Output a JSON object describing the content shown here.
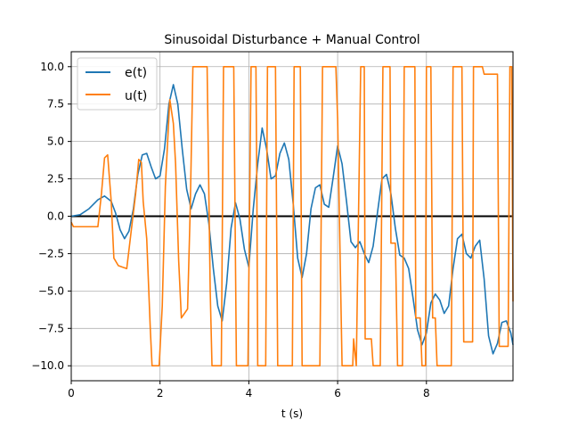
{
  "chart_data": {
    "type": "line",
    "title": "Sinusoidal Disturbance + Manual Control",
    "xlabel": "t (s)",
    "ylabel": "",
    "xlim": [
      0,
      9.95
    ],
    "ylim": [
      -11,
      11
    ],
    "xticks": [
      0,
      2,
      4,
      6,
      8
    ],
    "xtick_labels": [
      "0",
      "2",
      "4",
      "6",
      "8"
    ],
    "yticks": [
      -10,
      -7.5,
      -5,
      -2.5,
      0,
      2.5,
      5,
      7.5,
      10
    ],
    "ytick_labels": [
      "−10.0",
      "−7.5",
      "−5.0",
      "−2.5",
      "0.0",
      "2.5",
      "5.0",
      "7.5",
      "10.0"
    ],
    "grid": true,
    "legend_position": "top-left",
    "reference_line": {
      "y": 0,
      "color": "#000000"
    },
    "series": [
      {
        "name": "e(t)",
        "color": "#1f77b4",
        "points": [
          [
            0,
            0
          ],
          [
            0.2,
            0.1
          ],
          [
            0.4,
            0.5
          ],
          [
            0.6,
            1.1
          ],
          [
            0.75,
            1.35
          ],
          [
            0.9,
            1.0
          ],
          [
            1.0,
            0.2
          ],
          [
            1.1,
            -0.9
          ],
          [
            1.2,
            -1.5
          ],
          [
            1.3,
            -1.0
          ],
          [
            1.4,
            0.5
          ],
          [
            1.5,
            2.8
          ],
          [
            1.6,
            4.1
          ],
          [
            1.7,
            4.2
          ],
          [
            1.8,
            3.3
          ],
          [
            1.9,
            2.5
          ],
          [
            2.0,
            2.7
          ],
          [
            2.1,
            4.5
          ],
          [
            2.2,
            7.5
          ],
          [
            2.3,
            8.8
          ],
          [
            2.4,
            7.5
          ],
          [
            2.5,
            4.5
          ],
          [
            2.6,
            1.8
          ],
          [
            2.7,
            0.5
          ],
          [
            2.8,
            1.5
          ],
          [
            2.9,
            2.1
          ],
          [
            3.0,
            1.5
          ],
          [
            3.1,
            -0.5
          ],
          [
            3.2,
            -3.5
          ],
          [
            3.3,
            -6.0
          ],
          [
            3.4,
            -7.0
          ],
          [
            3.5,
            -4.5
          ],
          [
            3.6,
            -0.8
          ],
          [
            3.7,
            0.9
          ],
          [
            3.8,
            -0.2
          ],
          [
            3.9,
            -2.2
          ],
          [
            4.0,
            -3.4
          ],
          [
            4.1,
            0.5
          ],
          [
            4.2,
            3.5
          ],
          [
            4.3,
            5.9
          ],
          [
            4.4,
            4.5
          ],
          [
            4.5,
            2.5
          ],
          [
            4.6,
            2.7
          ],
          [
            4.7,
            4.2
          ],
          [
            4.8,
            4.9
          ],
          [
            4.9,
            3.8
          ],
          [
            5.0,
            0.8
          ],
          [
            5.1,
            -2.8
          ],
          [
            5.2,
            -4.1
          ],
          [
            5.3,
            -2.5
          ],
          [
            5.4,
            0.5
          ],
          [
            5.5,
            1.9
          ],
          [
            5.6,
            2.1
          ],
          [
            5.7,
            0.8
          ],
          [
            5.8,
            0.6
          ],
          [
            5.9,
            2.6
          ],
          [
            6.0,
            4.7
          ],
          [
            6.1,
            3.5
          ],
          [
            6.2,
            1.0
          ],
          [
            6.3,
            -1.7
          ],
          [
            6.4,
            -2.1
          ],
          [
            6.5,
            -1.7
          ],
          [
            6.6,
            -2.5
          ],
          [
            6.7,
            -3.1
          ],
          [
            6.8,
            -2.0
          ],
          [
            6.9,
            0.3
          ],
          [
            7.0,
            2.5
          ],
          [
            7.1,
            2.8
          ],
          [
            7.2,
            1.5
          ],
          [
            7.3,
            -0.8
          ],
          [
            7.4,
            -2.6
          ],
          [
            7.5,
            -2.8
          ],
          [
            7.6,
            -3.5
          ],
          [
            7.7,
            -5.5
          ],
          [
            7.8,
            -7.6
          ],
          [
            7.9,
            -8.6
          ],
          [
            8.0,
            -7.8
          ],
          [
            8.1,
            -5.8
          ],
          [
            8.2,
            -5.2
          ],
          [
            8.3,
            -5.6
          ],
          [
            8.4,
            -6.5
          ],
          [
            8.5,
            -6.0
          ],
          [
            8.6,
            -3.5
          ],
          [
            8.7,
            -1.5
          ],
          [
            8.8,
            -1.2
          ],
          [
            8.9,
            -2.5
          ],
          [
            9.0,
            -2.8
          ],
          [
            9.1,
            -2.0
          ],
          [
            9.2,
            -1.6
          ],
          [
            9.3,
            -4.2
          ],
          [
            9.4,
            -8.0
          ],
          [
            9.5,
            -9.2
          ],
          [
            9.6,
            -8.5
          ],
          [
            9.7,
            -7.1
          ],
          [
            9.8,
            -7.0
          ],
          [
            9.9,
            -7.8
          ],
          [
            9.95,
            -8.6
          ]
        ]
      },
      {
        "name": "u(t)",
        "color": "#ff7f0e",
        "points": [
          [
            0,
            -0.4
          ],
          [
            0.05,
            -0.7
          ],
          [
            0.6,
            -0.7
          ],
          [
            0.68,
            1.5
          ],
          [
            0.75,
            3.9
          ],
          [
            0.82,
            4.1
          ],
          [
            0.9,
            1.0
          ],
          [
            0.96,
            -2.8
          ],
          [
            1.06,
            -3.3
          ],
          [
            1.15,
            -3.4
          ],
          [
            1.25,
            -3.5
          ],
          [
            1.33,
            -1.5
          ],
          [
            1.45,
            1.5
          ],
          [
            1.52,
            3.8
          ],
          [
            1.58,
            3.6
          ],
          [
            1.62,
            1.0
          ],
          [
            1.7,
            -1.5
          ],
          [
            1.78,
            -7.5
          ],
          [
            1.82,
            -10.0
          ],
          [
            1.98,
            -10.0
          ],
          [
            2.05,
            -6.0
          ],
          [
            2.12,
            2.0
          ],
          [
            2.18,
            5.5
          ],
          [
            2.22,
            7.8
          ],
          [
            2.3,
            6.2
          ],
          [
            2.35,
            3.5
          ],
          [
            2.42,
            -3.0
          ],
          [
            2.48,
            -6.8
          ],
          [
            2.62,
            -6.2
          ],
          [
            2.68,
            0.5
          ],
          [
            2.74,
            10.0
          ],
          [
            3.06,
            10.0
          ],
          [
            3.13,
            -5.0
          ],
          [
            3.17,
            -10.0
          ],
          [
            3.38,
            -10.0
          ],
          [
            3.43,
            10.0
          ],
          [
            3.66,
            10.0
          ],
          [
            3.72,
            -10.0
          ],
          [
            3.98,
            -10.0
          ],
          [
            4.05,
            10.0
          ],
          [
            4.16,
            10.0
          ],
          [
            4.18,
            2.0
          ],
          [
            4.2,
            -10.0
          ],
          [
            4.38,
            -10.0
          ],
          [
            4.42,
            10.0
          ],
          [
            4.6,
            10.0
          ],
          [
            4.65,
            -10.0
          ],
          [
            4.98,
            -10.0
          ],
          [
            5.02,
            10.0
          ],
          [
            5.16,
            10.0
          ],
          [
            5.2,
            -10.0
          ],
          [
            5.6,
            -10.0
          ],
          [
            5.66,
            10.0
          ],
          [
            5.96,
            10.0
          ],
          [
            6.0,
            6.5
          ],
          [
            6.1,
            -10.0
          ],
          [
            6.34,
            -10.0
          ],
          [
            6.36,
            -8.2
          ],
          [
            6.42,
            -10.0
          ],
          [
            6.52,
            10.0
          ],
          [
            6.6,
            10.0
          ],
          [
            6.62,
            -8.2
          ],
          [
            6.76,
            -8.2
          ],
          [
            6.8,
            -10.0
          ],
          [
            6.96,
            -10.0
          ],
          [
            7.02,
            10.0
          ],
          [
            7.18,
            10.0
          ],
          [
            7.2,
            -1.8
          ],
          [
            7.3,
            -1.8
          ],
          [
            7.35,
            -10.0
          ],
          [
            7.46,
            -10.0
          ],
          [
            7.5,
            10.0
          ],
          [
            7.74,
            10.0
          ],
          [
            7.76,
            -6.8
          ],
          [
            7.86,
            -6.8
          ],
          [
            7.9,
            -10.0
          ],
          [
            7.98,
            -10.0
          ],
          [
            8.0,
            10.0
          ],
          [
            8.1,
            10.0
          ],
          [
            8.14,
            -6.8
          ],
          [
            8.2,
            -6.8
          ],
          [
            8.24,
            -10.0
          ],
          [
            8.56,
            -10.0
          ],
          [
            8.6,
            10.0
          ],
          [
            8.8,
            10.0
          ],
          [
            8.84,
            -8.4
          ],
          [
            9.04,
            -8.4
          ],
          [
            9.06,
            10.0
          ],
          [
            9.26,
            10.0
          ],
          [
            9.3,
            9.5
          ],
          [
            9.6,
            9.5
          ],
          [
            9.64,
            -8.7
          ],
          [
            9.84,
            -8.7
          ],
          [
            9.88,
            10.0
          ],
          [
            9.92,
            10.0
          ],
          [
            9.95,
            -5.7
          ]
        ]
      }
    ]
  }
}
